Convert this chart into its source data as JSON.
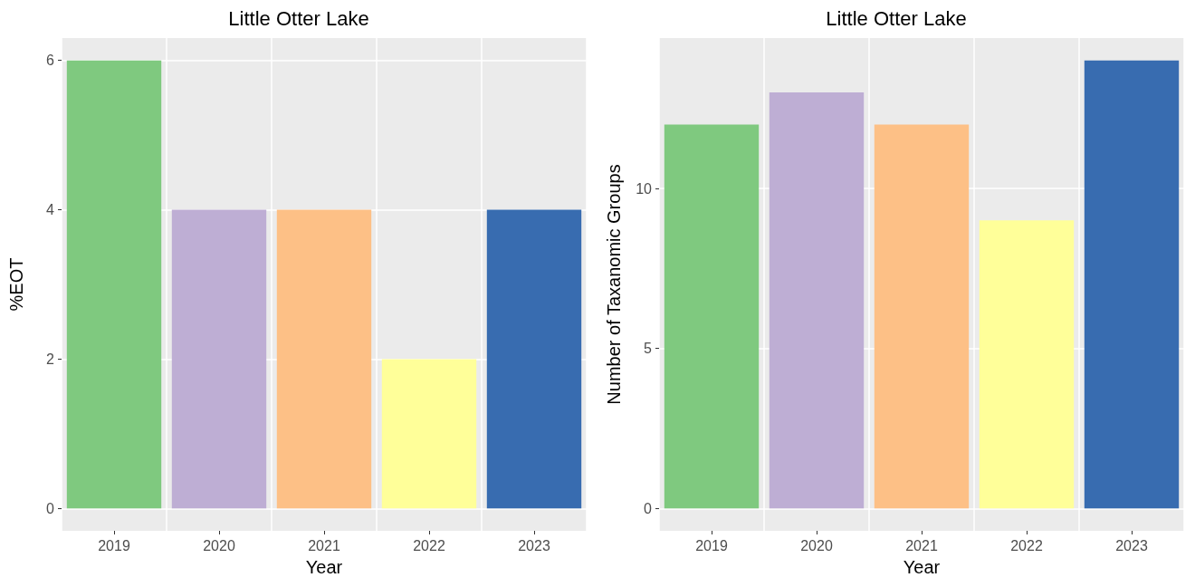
{
  "chart_data": [
    {
      "type": "bar",
      "title": "Little Otter Lake",
      "xlabel": "Year",
      "ylabel": "%EOT",
      "categories": [
        "2019",
        "2020",
        "2021",
        "2022",
        "2023"
      ],
      "values": [
        6,
        4,
        4,
        2,
        4
      ],
      "colors": [
        "#7fc97f",
        "#beaed4",
        "#fdc086",
        "#ffff99",
        "#386cb0"
      ],
      "ylim": [
        -0.3,
        6.3
      ],
      "yticks": [
        0,
        2,
        4,
        6
      ],
      "grid": true
    },
    {
      "type": "bar",
      "title": "Little Otter Lake",
      "xlabel": "Year",
      "ylabel": "Number of Taxanomic Groups",
      "categories": [
        "2019",
        "2020",
        "2021",
        "2022",
        "2023"
      ],
      "values": [
        12,
        13,
        12,
        9,
        14
      ],
      "colors": [
        "#7fc97f",
        "#beaed4",
        "#fdc086",
        "#ffff99",
        "#386cb0"
      ],
      "ylim": [
        -0.7,
        14.7
      ],
      "yticks": [
        0,
        5,
        10
      ],
      "grid": true
    }
  ]
}
